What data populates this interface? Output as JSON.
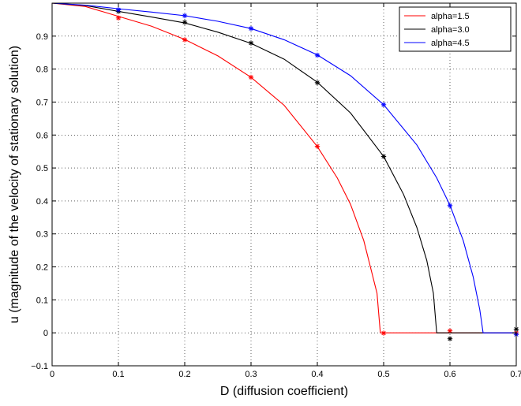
{
  "chart_data": {
    "type": "line",
    "title": "",
    "xlabel": "D (diffusion coefficient)",
    "ylabel": "u (magnitude of the velocity of stationary solution)",
    "xlim": [
      0,
      0.7
    ],
    "ylim": [
      -0.1,
      1.0
    ],
    "x_ticks": [
      "0",
      "0.1",
      "0.2",
      "0.3",
      "0.4",
      "0.5",
      "0.6",
      "0.7"
    ],
    "y_ticks": [
      "−0.1",
      "0",
      "0.1",
      "0.2",
      "0.3",
      "0.4",
      "0.5",
      "0.6",
      "0.7",
      "0.8",
      "0.9"
    ],
    "grid": true,
    "legend_position": "top-right",
    "series": [
      {
        "name": "alpha=1.5",
        "color": "#ff0000",
        "curve": {
          "x": [
            0,
            0.05,
            0.1,
            0.15,
            0.2,
            0.25,
            0.3,
            0.35,
            0.4,
            0.43,
            0.45,
            0.47,
            0.48,
            0.49,
            0.495,
            0.5,
            0.55,
            0.6,
            0.65,
            0.7
          ],
          "y": [
            1.0,
            0.99,
            0.96,
            0.93,
            0.89,
            0.84,
            0.775,
            0.69,
            0.565,
            0.47,
            0.39,
            0.28,
            0.2,
            0.12,
            0.0,
            0.0,
            0.0,
            0.0,
            0.0,
            0.0
          ]
        },
        "markers": {
          "x": [
            0.1,
            0.2,
            0.3,
            0.4,
            0.5,
            0.6,
            0.7
          ],
          "y": [
            0.955,
            0.889,
            0.775,
            0.566,
            -0.001,
            0.006,
            0.0
          ]
        }
      },
      {
        "name": "alpha=3.0",
        "color": "#000000",
        "curve": {
          "x": [
            0,
            0.05,
            0.1,
            0.15,
            0.2,
            0.25,
            0.3,
            0.35,
            0.4,
            0.45,
            0.5,
            0.53,
            0.55,
            0.565,
            0.575,
            0.58,
            0.6,
            0.65,
            0.7
          ],
          "y": [
            1.0,
            0.993,
            0.975,
            0.958,
            0.94,
            0.912,
            0.878,
            0.83,
            0.76,
            0.667,
            0.535,
            0.42,
            0.32,
            0.22,
            0.12,
            0.0,
            0.0,
            0.0,
            0.0
          ]
        },
        "markers": {
          "x": [
            0.1,
            0.2,
            0.3,
            0.4,
            0.5,
            0.6,
            0.7
          ],
          "y": [
            0.975,
            0.942,
            0.879,
            0.759,
            0.535,
            -0.018,
            0.011
          ]
        }
      },
      {
        "name": "alpha=4.5",
        "color": "#0000ff",
        "curve": {
          "x": [
            0,
            0.05,
            0.1,
            0.15,
            0.2,
            0.25,
            0.3,
            0.35,
            0.4,
            0.45,
            0.5,
            0.55,
            0.58,
            0.6,
            0.62,
            0.635,
            0.645,
            0.65,
            0.7
          ],
          "y": [
            1.0,
            0.994,
            0.983,
            0.973,
            0.962,
            0.945,
            0.923,
            0.889,
            0.843,
            0.78,
            0.692,
            0.57,
            0.47,
            0.387,
            0.28,
            0.17,
            0.07,
            0.0,
            0.0
          ]
        },
        "markers": {
          "x": [
            0.1,
            0.2,
            0.3,
            0.4,
            0.5,
            0.6,
            0.7
          ],
          "y": [
            0.98,
            0.962,
            0.923,
            0.842,
            0.692,
            0.386,
            -0.005
          ]
        }
      }
    ]
  }
}
